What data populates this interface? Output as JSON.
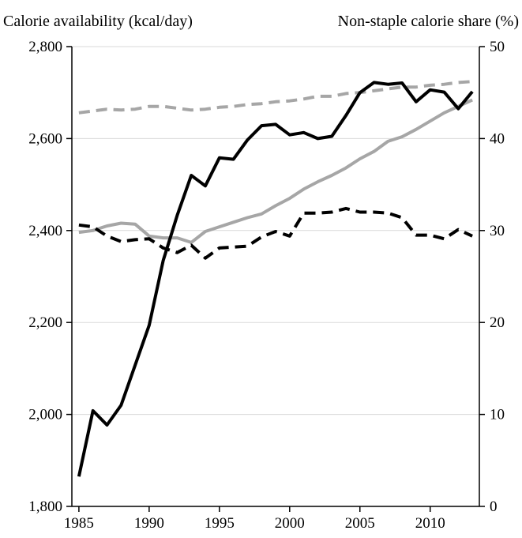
{
  "chart_data": {
    "type": "line",
    "left_axis_title": "Calorie availability (kcal/day)",
    "right_axis_title": "Non-staple calorie share (%)",
    "x_ticks": [
      "1985",
      "1990",
      "1995",
      "2000",
      "2005",
      "2010"
    ],
    "left_ticks": [
      "1,800",
      "2,000",
      "2,200",
      "2,400",
      "2,600",
      "2,800"
    ],
    "right_ticks": [
      "0",
      "10",
      "20",
      "30",
      "40",
      "50"
    ],
    "xlim": [
      1984.5,
      2013.5
    ],
    "left_ylim": [
      1800,
      2800
    ],
    "right_ylim": [
      0,
      50
    ],
    "grid": "horizontal",
    "legend": "none",
    "series": [
      {
        "axis": "left",
        "color": "#000000",
        "dash": "solid",
        "x": [
          1985,
          1986,
          1987,
          1988,
          1989,
          1990,
          1991,
          1992,
          1993,
          1994,
          1995,
          1996,
          1997,
          1998,
          1999,
          2000,
          2001,
          2002,
          2003,
          2004,
          2005,
          2006,
          2007,
          2008,
          2009,
          2010,
          2011,
          2012,
          2013
        ],
        "values": [
          1865,
          2008,
          1977,
          2020,
          2107,
          2194,
          2335,
          2433,
          2520,
          2497,
          2558,
          2555,
          2597,
          2628,
          2631,
          2608,
          2613,
          2600,
          2605,
          2650,
          2700,
          2722,
          2718,
          2721,
          2680,
          2706,
          2701,
          2665,
          2702
        ]
      },
      {
        "axis": "right",
        "color": "#a6a6a6",
        "dash": "solid",
        "x": [
          1985,
          1986,
          1987,
          1988,
          1989,
          1990,
          1991,
          1992,
          1993,
          1994,
          1995,
          1996,
          1997,
          1998,
          1999,
          2000,
          2001,
          2002,
          2003,
          2004,
          2005,
          2006,
          2007,
          2008,
          2009,
          2010,
          2011,
          2012,
          2013
        ],
        "values": [
          29.8,
          30.0,
          30.5,
          30.8,
          30.7,
          29.4,
          29.2,
          29.2,
          28.7,
          29.9,
          30.4,
          30.9,
          31.4,
          31.8,
          32.7,
          33.5,
          34.5,
          35.3,
          36.0,
          36.8,
          37.8,
          38.6,
          39.7,
          40.2,
          41.0,
          41.9,
          42.8,
          43.5,
          44.2
        ]
      },
      {
        "axis": "right",
        "color": "#000000",
        "dash": "dashed",
        "x": [
          1985,
          1986,
          1987,
          1988,
          1989,
          1990,
          1991,
          1992,
          1993,
          1994,
          1995,
          1996,
          1997,
          1998,
          1999,
          2000,
          2001,
          2002,
          2003,
          2004,
          2005,
          2006,
          2007,
          2008,
          2009,
          2010,
          2011,
          2012,
          2013
        ],
        "values": [
          30.6,
          30.4,
          29.4,
          28.8,
          29.0,
          29.1,
          28.1,
          27.6,
          28.4,
          27.0,
          28.1,
          28.2,
          28.3,
          29.3,
          29.9,
          29.4,
          31.9,
          31.9,
          32.0,
          32.4,
          32.0,
          32.0,
          31.9,
          31.4,
          29.5,
          29.5,
          29.1,
          30.1,
          29.4
        ]
      },
      {
        "axis": "right",
        "color": "#a6a6a6",
        "dash": "dashed",
        "x": [
          1985,
          1986,
          1987,
          1988,
          1989,
          1990,
          1991,
          1992,
          1993,
          1994,
          1995,
          1996,
          1997,
          1998,
          1999,
          2000,
          2001,
          2002,
          2003,
          2004,
          2005,
          2006,
          2007,
          2008,
          2009,
          2010,
          2011,
          2012,
          2013
        ],
        "values": [
          42.8,
          43.0,
          43.2,
          43.1,
          43.2,
          43.5,
          43.5,
          43.3,
          43.1,
          43.2,
          43.4,
          43.5,
          43.7,
          43.8,
          44.0,
          44.1,
          44.3,
          44.6,
          44.6,
          44.9,
          45.0,
          45.2,
          45.4,
          45.6,
          45.6,
          45.8,
          45.9,
          46.1,
          46.2
        ]
      }
    ]
  }
}
